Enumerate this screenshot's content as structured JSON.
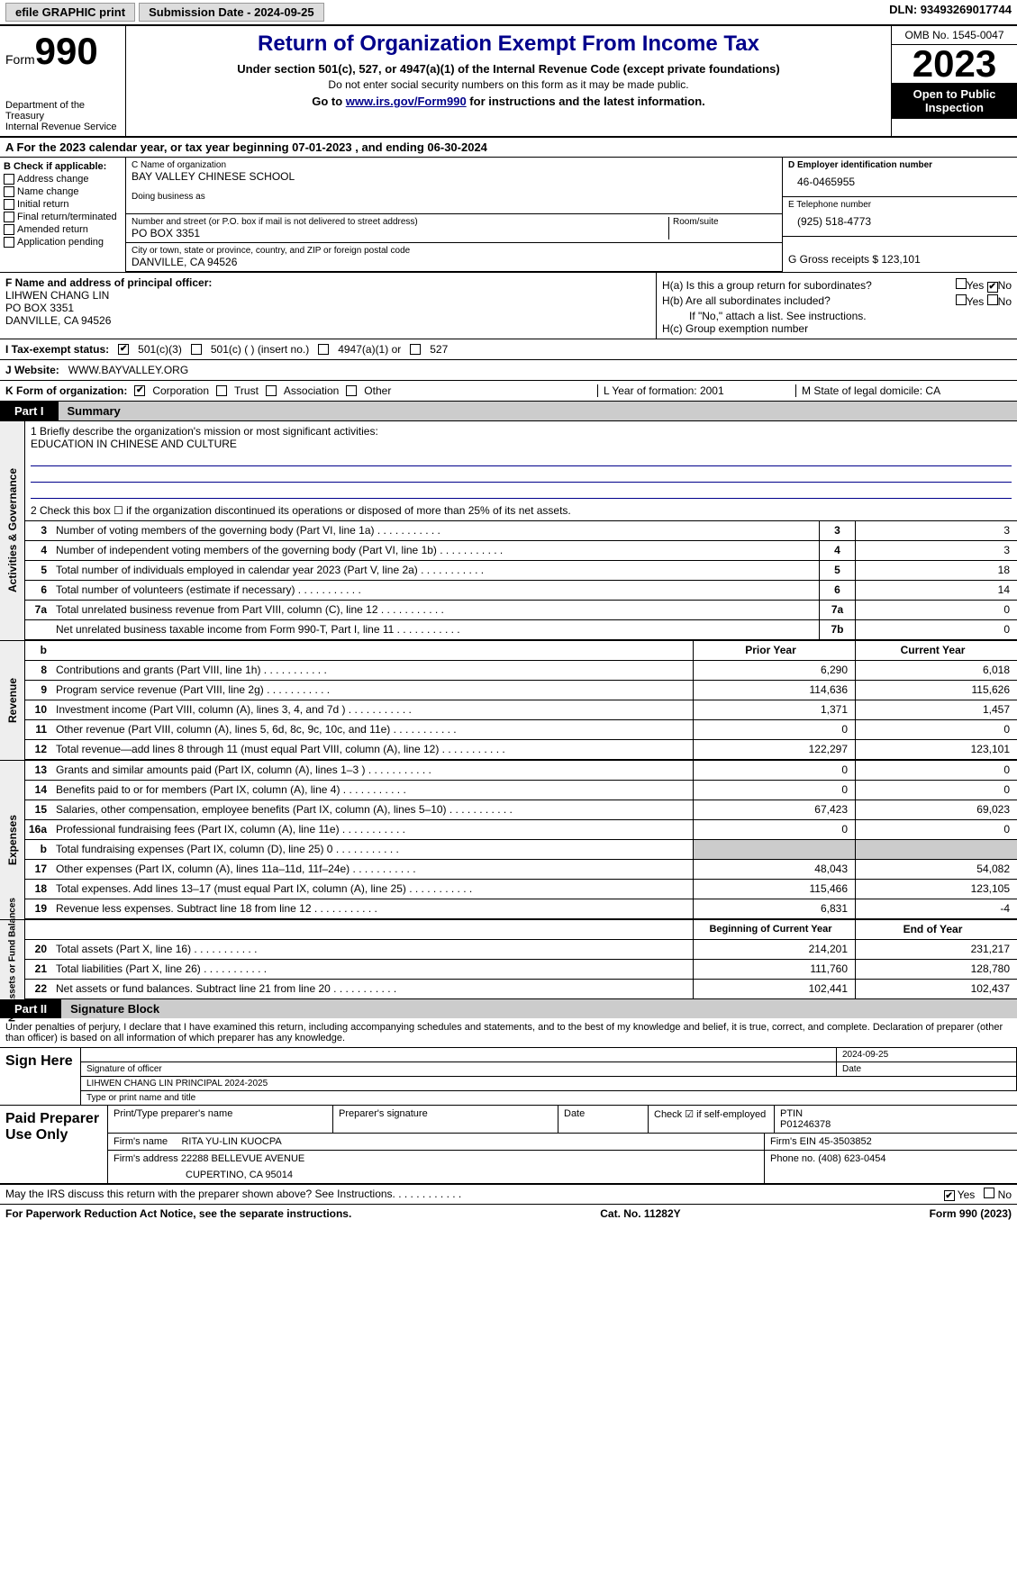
{
  "top": {
    "efile": "efile GRAPHIC print",
    "submission": "Submission Date - 2024-09-25",
    "dln": "DLN: 93493269017744"
  },
  "header": {
    "form_prefix": "Form",
    "form_num": "990",
    "dept": "Department of the Treasury",
    "irs": "Internal Revenue Service",
    "title": "Return of Organization Exempt From Income Tax",
    "sub1": "Under section 501(c), 527, or 4947(a)(1) of the Internal Revenue Code (except private foundations)",
    "sub2": "Do not enter social security numbers on this form as it may be made public.",
    "goto": "Go to ",
    "goto_link": "www.irs.gov/Form990",
    "goto_suffix": " for instructions and the latest information.",
    "omb": "OMB No. 1545-0047",
    "year": "2023",
    "inspection": "Open to Public Inspection"
  },
  "period": {
    "text": "A For the 2023 calendar year, or tax year beginning 07-01-2023   , and ending 06-30-2024"
  },
  "colB": {
    "label": "B Check if applicable:",
    "items": [
      "Address change",
      "Name change",
      "Initial return",
      "Final return/terminated",
      "Amended return",
      "Application pending"
    ]
  },
  "colC": {
    "name_lbl": "C Name of organization",
    "name": "BAY VALLEY CHINESE SCHOOL",
    "dba_lbl": "Doing business as",
    "addr_lbl": "Number and street (or P.O. box if mail is not delivered to street address)",
    "addr": "PO BOX 3351",
    "room_lbl": "Room/suite",
    "city_lbl": "City or town, state or province, country, and ZIP or foreign postal code",
    "city": "DANVILLE, CA  94526"
  },
  "colD": {
    "ein_lbl": "D Employer identification number",
    "ein": "46-0465955",
    "phone_lbl": "E Telephone number",
    "phone": "(925) 518-4773",
    "gross_lbl": "G Gross receipts $ 123,101"
  },
  "rowF": {
    "lbl": "F  Name and address of principal officer:",
    "name": "LIHWEN CHANG LIN",
    "addr1": "PO BOX 3351",
    "addr2": "DANVILLE, CA  94526"
  },
  "rowH": {
    "ha": "H(a)  Is this a group return for subordinates?",
    "hb": "H(b)  Are all subordinates included?",
    "hb_note": "If \"No,\" attach a list. See instructions.",
    "hc": "H(c)  Group exemption number",
    "yes": "Yes",
    "no": "No"
  },
  "status": {
    "lbl": "I  Tax-exempt status:",
    "opt1": "501(c)(3)",
    "opt2": "501(c) (  ) (insert no.)",
    "opt3": "4947(a)(1) or",
    "opt4": "527"
  },
  "website": {
    "lbl": "J  Website:",
    "val": "WWW.BAYVALLEY.ORG"
  },
  "orgform": {
    "lbl": "K Form of organization:",
    "corp": "Corporation",
    "trust": "Trust",
    "assoc": "Association",
    "other": "Other",
    "year_lbl": "L Year of formation: 2001",
    "state_lbl": "M State of legal domicile: CA"
  },
  "part1": {
    "tab": "Part I",
    "title": "Summary"
  },
  "mission": {
    "q": "1  Briefly describe the organization's mission or most significant activities:",
    "a": "EDUCATION IN CHINESE AND CULTURE",
    "q2": "2   Check this box ☐  if the organization discontinued its operations or disposed of more than 25% of its net assets."
  },
  "gov_rows": [
    {
      "n": "3",
      "t": "Number of voting members of the governing body (Part VI, line 1a)",
      "b": "3",
      "v": "3"
    },
    {
      "n": "4",
      "t": "Number of independent voting members of the governing body (Part VI, line 1b)",
      "b": "4",
      "v": "3"
    },
    {
      "n": "5",
      "t": "Total number of individuals employed in calendar year 2023 (Part V, line 2a)",
      "b": "5",
      "v": "18"
    },
    {
      "n": "6",
      "t": "Total number of volunteers (estimate if necessary)",
      "b": "6",
      "v": "14"
    },
    {
      "n": "7a",
      "t": "Total unrelated business revenue from Part VIII, column (C), line 12",
      "b": "7a",
      "v": "0"
    },
    {
      "n": "",
      "t": "Net unrelated business taxable income from Form 990-T, Part I, line 11",
      "b": "7b",
      "v": "0"
    }
  ],
  "col_hdrs": {
    "b": "b",
    "prior": "Prior Year",
    "current": "Current Year"
  },
  "rev_rows": [
    {
      "n": "8",
      "t": "Contributions and grants (Part VIII, line 1h)",
      "p": "6,290",
      "c": "6,018"
    },
    {
      "n": "9",
      "t": "Program service revenue (Part VIII, line 2g)",
      "p": "114,636",
      "c": "115,626"
    },
    {
      "n": "10",
      "t": "Investment income (Part VIII, column (A), lines 3, 4, and 7d )",
      "p": "1,371",
      "c": "1,457"
    },
    {
      "n": "11",
      "t": "Other revenue (Part VIII, column (A), lines 5, 6d, 8c, 9c, 10c, and 11e)",
      "p": "0",
      "c": "0"
    },
    {
      "n": "12",
      "t": "Total revenue—add lines 8 through 11 (must equal Part VIII, column (A), line 12)",
      "p": "122,297",
      "c": "123,101"
    }
  ],
  "exp_rows": [
    {
      "n": "13",
      "t": "Grants and similar amounts paid (Part IX, column (A), lines 1–3 )",
      "p": "0",
      "c": "0"
    },
    {
      "n": "14",
      "t": "Benefits paid to or for members (Part IX, column (A), line 4)",
      "p": "0",
      "c": "0"
    },
    {
      "n": "15",
      "t": "Salaries, other compensation, employee benefits (Part IX, column (A), lines 5–10)",
      "p": "67,423",
      "c": "69,023"
    },
    {
      "n": "16a",
      "t": "Professional fundraising fees (Part IX, column (A), line 11e)",
      "p": "0",
      "c": "0"
    },
    {
      "n": "b",
      "t": "Total fundraising expenses (Part IX, column (D), line 25) 0",
      "p": "",
      "c": "",
      "shaded": true
    },
    {
      "n": "17",
      "t": "Other expenses (Part IX, column (A), lines 11a–11d, 11f–24e)",
      "p": "48,043",
      "c": "54,082"
    },
    {
      "n": "18",
      "t": "Total expenses. Add lines 13–17 (must equal Part IX, column (A), line 25)",
      "p": "115,466",
      "c": "123,105"
    },
    {
      "n": "19",
      "t": "Revenue less expenses. Subtract line 18 from line 12",
      "p": "6,831",
      "c": "-4"
    }
  ],
  "na_hdrs": {
    "beg": "Beginning of Current Year",
    "end": "End of Year"
  },
  "na_rows": [
    {
      "n": "20",
      "t": "Total assets (Part X, line 16)",
      "p": "214,201",
      "c": "231,217"
    },
    {
      "n": "21",
      "t": "Total liabilities (Part X, line 26)",
      "p": "111,760",
      "c": "128,780"
    },
    {
      "n": "22",
      "t": "Net assets or fund balances. Subtract line 21 from line 20",
      "p": "102,441",
      "c": "102,437"
    }
  ],
  "vert": {
    "gov": "Activities & Governance",
    "rev": "Revenue",
    "exp": "Expenses",
    "na": "Net Assets or Fund Balances"
  },
  "part2": {
    "tab": "Part II",
    "title": "Signature Block"
  },
  "sig": {
    "perjury": "Under penalties of perjury, I declare that I have examined this return, including accompanying schedules and statements, and to the best of my knowledge and belief, it is true, correct, and complete. Declaration of preparer (other than officer) is based on all information of which preparer has any knowledge.",
    "sign_here": "Sign Here",
    "date": "2024-09-25",
    "sig_lbl": "Signature of officer",
    "date_lbl": "Date",
    "officer": "LIHWEN CHANG LIN  PRINCIPAL 2024-2025",
    "type_lbl": "Type or print name and title"
  },
  "prep": {
    "lbl": "Paid Preparer Use Only",
    "h1": "Print/Type preparer's name",
    "h2": "Preparer's signature",
    "h3": "Date",
    "h4": "Check ☑ if self-employed",
    "h5": "PTIN",
    "ptin": "P01246378",
    "firm_lbl": "Firm's name",
    "firm": "RITA YU-LIN KUOCPA",
    "ein_lbl": "Firm's EIN  45-3503852",
    "addr_lbl": "Firm's address",
    "addr1": "22288 BELLEVUE AVENUE",
    "addr2": "CUPERTINO, CA  95014",
    "phone_lbl": "Phone no. (408) 623-0454"
  },
  "footer": {
    "discuss": "May the IRS discuss this return with the preparer shown above? See Instructions.",
    "yes": "Yes",
    "no": "No",
    "paperwork": "For Paperwork Reduction Act Notice, see the separate instructions.",
    "cat": "Cat. No. 11282Y",
    "form": "Form 990 (2023)"
  }
}
